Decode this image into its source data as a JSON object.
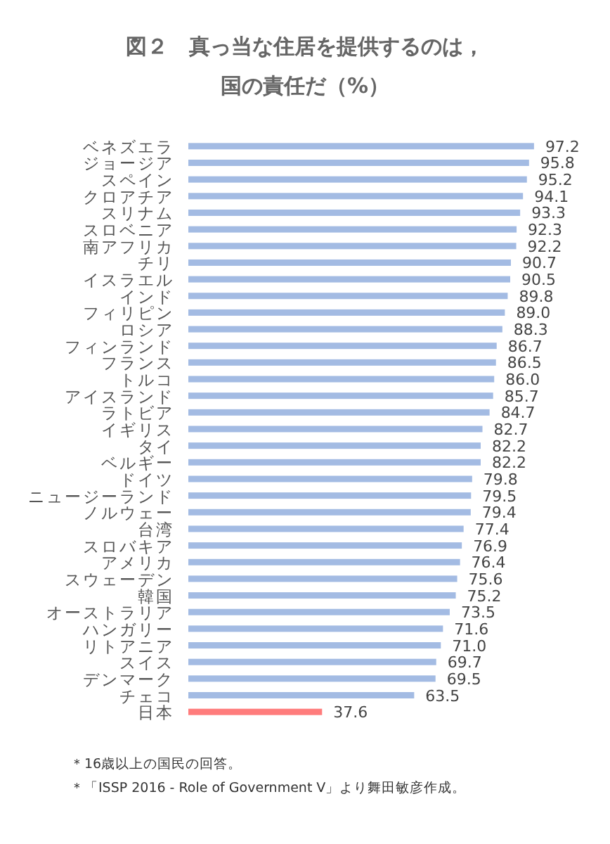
{
  "chart_data": {
    "type": "bar",
    "orientation": "horizontal",
    "title": "図２　真っ当な住居を提供するのは，",
    "subtitle": "国の責任だ（%）",
    "categories": [
      "ベネズエラ",
      "ジョージア",
      "スペイン",
      "クロアチア",
      "スリナム",
      "スロベニア",
      "南アフリカ",
      "チリ",
      "イスラエル",
      "インド",
      "フィリピン",
      "ロシア",
      "フィンランド",
      "フランス",
      "トルコ",
      "アイスランド",
      "ラトビア",
      "イギリス",
      "タイ",
      "ベルギー",
      "ドイツ",
      "ニュージーランド",
      "ノルウェー",
      "台湾",
      "スロバキア",
      "アメリカ",
      "スウェーデン",
      "韓国",
      "オーストラリア",
      "ハンガリー",
      "リトアニア",
      "スイス",
      "デンマーク",
      "チェコ",
      "日本"
    ],
    "values": [
      97.2,
      95.8,
      95.2,
      94.1,
      93.3,
      92.3,
      92.2,
      90.7,
      90.5,
      89.8,
      89.0,
      88.3,
      86.7,
      86.5,
      86.0,
      85.7,
      84.7,
      82.7,
      82.2,
      82.2,
      79.8,
      79.5,
      79.4,
      77.4,
      76.9,
      76.4,
      75.6,
      75.2,
      73.5,
      71.6,
      71.0,
      69.7,
      69.5,
      63.5,
      37.6
    ],
    "value_labels": [
      "97.2",
      "95.8",
      "95.2",
      "94.1",
      "93.3",
      "92.3",
      "92.2",
      "90.7",
      "90.5",
      "89.8",
      "89.0",
      "88.3",
      "86.7",
      "86.5",
      "86.0",
      "85.7",
      "84.7",
      "82.7",
      "82.2",
      "82.2",
      "79.8",
      "79.5",
      "79.4",
      "77.4",
      "76.9",
      "76.4",
      "75.6",
      "75.2",
      "73.5",
      "71.6",
      "71.0",
      "69.7",
      "69.5",
      "63.5",
      "37.6"
    ],
    "colors": [
      "#a3bbe3",
      "#a3bbe3",
      "#a3bbe3",
      "#a3bbe3",
      "#a3bbe3",
      "#a3bbe3",
      "#a3bbe3",
      "#a3bbe3",
      "#a3bbe3",
      "#a3bbe3",
      "#a3bbe3",
      "#a3bbe3",
      "#a3bbe3",
      "#a3bbe3",
      "#a3bbe3",
      "#a3bbe3",
      "#a3bbe3",
      "#a3bbe3",
      "#a3bbe3",
      "#a3bbe3",
      "#a3bbe3",
      "#a3bbe3",
      "#a3bbe3",
      "#a3bbe3",
      "#a3bbe3",
      "#a3bbe3",
      "#a3bbe3",
      "#a3bbe3",
      "#a3bbe3",
      "#a3bbe3",
      "#a3bbe3",
      "#a3bbe3",
      "#a3bbe3",
      "#a3bbe3",
      "#ff7c7c"
    ],
    "annotations": [
      "＊16歳以上の国民の回答。",
      "＊「ISSP 2016 - Role of Government V」より舞田敏彦作成。"
    ]
  }
}
